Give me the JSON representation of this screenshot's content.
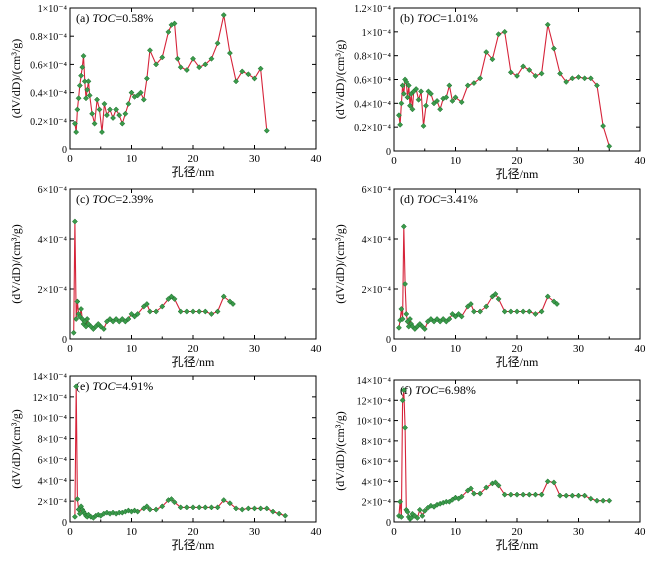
{
  "figure": {
    "colors": {
      "line": "#d6243a",
      "marker": "#3a9a4a"
    },
    "icons": {
      "marker": "diamond-marker-icon"
    }
  },
  "chart_data": [
    {
      "type": "line",
      "panel_label": "(a) ",
      "toc_label": "TOC",
      "toc_value": "=0.58%",
      "xlabel": "孔径/nm",
      "ylabel": "(dV/dD)/(cm³/g)",
      "xlim": [
        0,
        40
      ],
      "xticks": [
        "0",
        "10",
        "20",
        "30",
        "40"
      ],
      "ylim": [
        0,
        0.0001
      ],
      "ytick_labels": [
        "0",
        "0.2×10⁻⁴",
        "0.4×10⁻⁴",
        "0.6×10⁻⁴",
        "0.8×10⁻⁴",
        "1×10⁻⁴"
      ],
      "ytick_values": [
        0,
        2e-05,
        4e-05,
        6e-05,
        8e-05,
        0.0001
      ],
      "x": [
        0.8,
        1.0,
        1.2,
        1.4,
        1.6,
        1.8,
        2.0,
        2.2,
        2.4,
        2.6,
        2.8,
        3.0,
        3.2,
        3.6,
        4.0,
        4.4,
        4.8,
        5.2,
        5.6,
        6.0,
        6.5,
        7.0,
        7.5,
        8.0,
        8.5,
        9.0,
        9.5,
        10.0,
        10.5,
        11.0,
        11.5,
        12.0,
        12.5,
        13.0,
        14.0,
        15.0,
        16.0,
        16.5,
        17.0,
        17.5,
        18.0,
        19.0,
        20.0,
        21.0,
        22.0,
        23.0,
        24.0,
        25.0,
        26.0,
        27.0,
        28.0,
        29.0,
        30.0,
        31.0,
        32.0
      ],
      "y": [
        1.8e-05,
        1.2e-05,
        2.8e-05,
        3.6e-05,
        4.5e-05,
        5.2e-05,
        5.8e-05,
        6.6e-05,
        4.8e-05,
        3.6e-05,
        4.2e-05,
        4.8e-05,
        3.8e-05,
        2.5e-05,
        1.8e-05,
        3.5e-05,
        2.8e-05,
        1.2e-05,
        3.2e-05,
        2.4e-05,
        2.8e-05,
        2.2e-05,
        2.8e-05,
        2.4e-05,
        1.8e-05,
        2.5e-05,
        3.2e-05,
        4e-05,
        3.7e-05,
        3.8e-05,
        4e-05,
        3.5e-05,
        5e-05,
        7e-05,
        6e-05,
        6.5e-05,
        8.3e-05,
        8.8e-05,
        8.9e-05,
        6.4e-05,
        5.8e-05,
        5.6e-05,
        6.4e-05,
        5.8e-05,
        6e-05,
        6.4e-05,
        7.5e-05,
        9.5e-05,
        6.8e-05,
        4.8e-05,
        5.5e-05,
        5.3e-05,
        5e-05,
        5.7e-05,
        1.3e-05
      ]
    },
    {
      "type": "line",
      "panel_label": "(b) ",
      "toc_label": "TOC",
      "toc_value": "=1.01%",
      "xlabel": "孔径/nm",
      "ylabel": "(dV/dD)/(cm³/g)",
      "xlim": [
        0,
        40
      ],
      "xticks": [
        "0",
        "10",
        "20",
        "30",
        "40"
      ],
      "ylim": [
        0,
        0.00012
      ],
      "ytick_labels": [
        "0",
        "0.2×10⁻⁴",
        "0.4×10⁻⁴",
        "0.6×10⁻⁴",
        "0.8×10⁻⁴",
        "1×10⁻⁴",
        "1.2×10⁻⁴"
      ],
      "ytick_values": [
        0,
        2e-05,
        4e-05,
        6e-05,
        8e-05,
        0.0001,
        0.00012
      ],
      "x": [
        0.8,
        1.0,
        1.2,
        1.4,
        1.6,
        1.8,
        2.0,
        2.2,
        2.4,
        2.6,
        2.8,
        3.0,
        3.2,
        3.6,
        4.0,
        4.4,
        4.8,
        5.2,
        5.6,
        6.0,
        6.5,
        7.0,
        7.5,
        8.0,
        8.5,
        9.0,
        9.5,
        10.0,
        11.0,
        12.0,
        13.0,
        14.0,
        15.0,
        16.0,
        17.0,
        18.0,
        19.0,
        20.0,
        21.0,
        22.0,
        23.0,
        24.0,
        25.0,
        26.0,
        27.0,
        28.0,
        29.0,
        30.0,
        31.0,
        32.0,
        33.0,
        34.0,
        35.0
      ],
      "y": [
        3e-05,
        2.2e-05,
        4e-05,
        5.5e-05,
        4.8e-05,
        6e-05,
        5.8e-05,
        4.5e-05,
        5.5e-05,
        3.8e-05,
        4.8e-05,
        3.5e-05,
        5e-05,
        5.2e-05,
        4.3e-05,
        5e-05,
        2.1e-05,
        3.8e-05,
        5e-05,
        4.8e-05,
        4e-05,
        4.2e-05,
        3.5e-05,
        4.4e-05,
        4.5e-05,
        5.5e-05,
        4.2e-05,
        4.5e-05,
        4.1e-05,
        5.5e-05,
        5.7e-05,
        6.1e-05,
        8.3e-05,
        7.7e-05,
        9.8e-05,
        0.0001,
        6.6e-05,
        6.3e-05,
        7.1e-05,
        6.8e-05,
        6.3e-05,
        6.5e-05,
        0.000106,
        8.6e-05,
        6.5e-05,
        5.8e-05,
        6.1e-05,
        6.2e-05,
        6.1e-05,
        6.1e-05,
        5.5e-05,
        2.1e-05,
        4e-06
      ]
    },
    {
      "type": "line",
      "panel_label": "(c) ",
      "toc_label": "TOC",
      "toc_value": "=2.39%",
      "xlabel": "孔径/nm",
      "ylabel": "(dV/dD)/(cm³/g)",
      "xlim": [
        0,
        40
      ],
      "xticks": [
        "0",
        "10",
        "20",
        "30",
        "40"
      ],
      "ylim": [
        0,
        0.0006
      ],
      "ytick_labels": [
        "0",
        "2×10⁻⁴",
        "4×10⁻⁴",
        "6×10⁻⁴"
      ],
      "ytick_values": [
        0,
        0.0002,
        0.0004,
        0.0006
      ],
      "x": [
        0.6,
        0.8,
        1.0,
        1.2,
        1.4,
        1.6,
        1.8,
        2.0,
        2.2,
        2.4,
        2.6,
        2.8,
        3.0,
        3.4,
        3.8,
        4.2,
        4.6,
        5.0,
        5.5,
        6.0,
        6.5,
        7.0,
        7.5,
        8.0,
        8.5,
        9.0,
        9.5,
        10.0,
        10.5,
        11.0,
        12.0,
        12.5,
        13.0,
        14.0,
        15.0,
        16.0,
        16.5,
        17.0,
        18.0,
        19.0,
        20.0,
        21.0,
        22.0,
        23.0,
        24.0,
        25.0,
        26.0,
        26.5
      ],
      "y": [
        2.5e-05,
        0.00047,
        8e-05,
        0.00015,
        0.0001,
        9e-05,
        0.00012,
        8e-05,
        6e-05,
        7e-05,
        5e-05,
        8e-05,
        6e-05,
        5e-05,
        4e-05,
        5e-05,
        6e-05,
        5e-05,
        4e-05,
        7e-05,
        8e-05,
        7e-05,
        8e-05,
        7e-05,
        8e-05,
        7e-05,
        8e-05,
        0.0001,
        9e-05,
        0.0001,
        0.00013,
        0.00014,
        0.00011,
        0.00011,
        0.00013,
        0.00016,
        0.00017,
        0.00016,
        0.00011,
        0.00011,
        0.00011,
        0.00011,
        0.00011,
        0.0001,
        0.00011,
        0.00017,
        0.00015,
        0.00014
      ]
    },
    {
      "type": "line",
      "panel_label": "(d) ",
      "toc_label": "TOC",
      "toc_value": "=3.41%",
      "xlabel": "孔径/nm",
      "ylabel": "(dV/dD)/(cm³/g)",
      "xlim": [
        0,
        40
      ],
      "xticks": [
        "0",
        "10",
        "20",
        "30",
        "40"
      ],
      "ylim": [
        0,
        0.0006
      ],
      "ytick_labels": [
        "0",
        "2×10⁻⁴",
        "4×10⁻⁴",
        "6×10⁻⁴"
      ],
      "ytick_values": [
        0,
        0.0002,
        0.0004,
        0.0006
      ],
      "x": [
        0.8,
        1.0,
        1.2,
        1.4,
        1.6,
        1.8,
        2.0,
        2.2,
        2.4,
        2.6,
        2.8,
        3.0,
        3.4,
        3.8,
        4.2,
        4.6,
        5.0,
        5.5,
        6.0,
        6.5,
        7.0,
        7.5,
        8.0,
        8.5,
        9.0,
        9.5,
        10.0,
        10.5,
        11.0,
        12.0,
        12.5,
        13.0,
        14.0,
        15.0,
        16.0,
        16.5,
        17.0,
        18.0,
        19.0,
        20.0,
        21.0,
        22.0,
        23.0,
        24.0,
        25.0,
        26.0,
        26.5
      ],
      "y": [
        4.5e-05,
        7.5e-05,
        0.00012,
        8e-05,
        0.00045,
        0.00022,
        0.0001,
        7e-05,
        5e-05,
        8e-05,
        6e-05,
        5e-05,
        4e-05,
        5e-05,
        6e-05,
        5e-05,
        4e-05,
        7e-05,
        8e-05,
        7e-05,
        8e-05,
        7e-05,
        8e-05,
        7e-05,
        8e-05,
        0.0001,
        9e-05,
        0.0001,
        9e-05,
        0.00013,
        0.00014,
        0.00011,
        0.00011,
        0.00013,
        0.00017,
        0.00018,
        0.00016,
        0.00011,
        0.00011,
        0.00011,
        0.00011,
        0.00011,
        0.0001,
        0.00011,
        0.00017,
        0.00015,
        0.00014
      ]
    },
    {
      "type": "line",
      "panel_label": "(e) ",
      "toc_label": "TOC",
      "toc_value": "=4.91%",
      "xlabel": "孔径/nm",
      "ylabel": "(dV/dD)/(cm³/g)",
      "xlim": [
        0,
        40
      ],
      "xticks": [
        "0",
        "10",
        "20",
        "30",
        "40"
      ],
      "ylim": [
        0,
        0.0014
      ],
      "ytick_labels": [
        "0",
        "2×10⁻⁴",
        "4×10⁻⁴",
        "6×10⁻⁴",
        "8×10⁻⁴",
        "10×10⁻⁴",
        "12×10⁻⁴",
        "14×10⁻⁴"
      ],
      "ytick_values": [
        0,
        0.0002,
        0.0004,
        0.0006,
        0.0008,
        0.001,
        0.0012,
        0.0014
      ],
      "x": [
        0.8,
        1.0,
        1.2,
        1.4,
        1.6,
        1.8,
        2.0,
        2.2,
        2.4,
        2.6,
        2.8,
        3.0,
        3.4,
        3.8,
        4.2,
        4.6,
        5.0,
        5.5,
        6.0,
        6.5,
        7.0,
        7.5,
        8.0,
        8.5,
        9.0,
        9.5,
        10.0,
        10.5,
        11.0,
        12.0,
        12.5,
        13.0,
        14.0,
        15.0,
        16.0,
        16.5,
        17.0,
        18.0,
        19.0,
        20.0,
        21.0,
        22.0,
        23.0,
        24.0,
        25.0,
        26.0,
        27.0,
        28.0,
        29.0,
        30.0,
        31.0,
        32.0,
        33.0,
        34.0,
        35.0
      ],
      "y": [
        5e-05,
        0.0013,
        0.00022,
        0.00012,
        8e-05,
        0.00015,
        0.00012,
        0.0001,
        8e-05,
        6e-05,
        5e-05,
        7e-05,
        5e-05,
        4e-05,
        6e-05,
        7e-05,
        6e-05,
        8e-05,
        9e-05,
        8e-05,
        9e-05,
        8e-05,
        9e-05,
        9e-05,
        0.0001,
        0.00011,
        0.0001,
        0.00011,
        0.0001,
        0.00013,
        0.00015,
        0.00012,
        0.00012,
        0.00015,
        0.00021,
        0.00022,
        0.00019,
        0.00014,
        0.00014,
        0.00014,
        0.00014,
        0.00014,
        0.00014,
        0.00014,
        0.00021,
        0.00018,
        0.00013,
        0.00012,
        0.00013,
        0.00013,
        0.00013,
        0.00013,
        0.0001,
        8e-05,
        6e-05
      ]
    },
    {
      "type": "line",
      "panel_label": "(f) ",
      "toc_label": "TOC",
      "toc_value": "=6.98%",
      "xlabel": "孔径/nm",
      "ylabel": "(dV/dD)/(cm³/g)",
      "xlim": [
        0,
        40
      ],
      "xticks": [
        "0",
        "10",
        "20",
        "30",
        "40"
      ],
      "ylim": [
        0,
        0.0014
      ],
      "ytick_labels": [
        "0",
        "2×10⁻⁴",
        "4×10⁻⁴",
        "6×10⁻⁴",
        "8×10⁻⁴",
        "10×10⁻⁴",
        "12×10⁻⁴",
        "14×10⁻⁴"
      ],
      "ytick_values": [
        0,
        0.0002,
        0.0004,
        0.0006,
        0.0008,
        0.001,
        0.0012,
        0.0014
      ],
      "x": [
        0.8,
        1.0,
        1.2,
        1.4,
        1.6,
        1.8,
        2.0,
        2.2,
        2.4,
        2.6,
        2.8,
        3.0,
        3.4,
        3.8,
        4.2,
        4.6,
        5.0,
        5.5,
        6.0,
        6.5,
        7.0,
        7.5,
        8.0,
        8.5,
        9.0,
        9.5,
        10.0,
        10.5,
        11.0,
        12.0,
        12.5,
        13.0,
        14.0,
        15.0,
        16.0,
        16.5,
        17.0,
        18.0,
        19.0,
        20.0,
        21.0,
        22.0,
        23.0,
        24.0,
        25.0,
        26.0,
        27.0,
        28.0,
        29.0,
        30.0,
        31.0,
        32.0,
        33.0,
        34.0,
        35.0
      ],
      "y": [
        6e-05,
        0.0002,
        5e-05,
        0.0012,
        0.0013,
        0.00093,
        0.00012,
        0.0001,
        5e-05,
        3e-05,
        4e-05,
        8e-05,
        6e-05,
        4e-05,
        0.00012,
        6e-05,
        0.00011,
        0.00014,
        0.00016,
        0.00015,
        0.00017,
        0.00018,
        0.00019,
        0.0002,
        0.0002,
        0.00022,
        0.00024,
        0.00023,
        0.00025,
        0.00031,
        0.00033,
        0.00028,
        0.00028,
        0.00034,
        0.00038,
        0.00039,
        0.00036,
        0.00027,
        0.00027,
        0.00027,
        0.00027,
        0.00027,
        0.00027,
        0.00027,
        0.0004,
        0.00039,
        0.00026,
        0.00026,
        0.00026,
        0.00026,
        0.00026,
        0.00023,
        0.00021,
        0.00021,
        0.00021
      ]
    }
  ]
}
